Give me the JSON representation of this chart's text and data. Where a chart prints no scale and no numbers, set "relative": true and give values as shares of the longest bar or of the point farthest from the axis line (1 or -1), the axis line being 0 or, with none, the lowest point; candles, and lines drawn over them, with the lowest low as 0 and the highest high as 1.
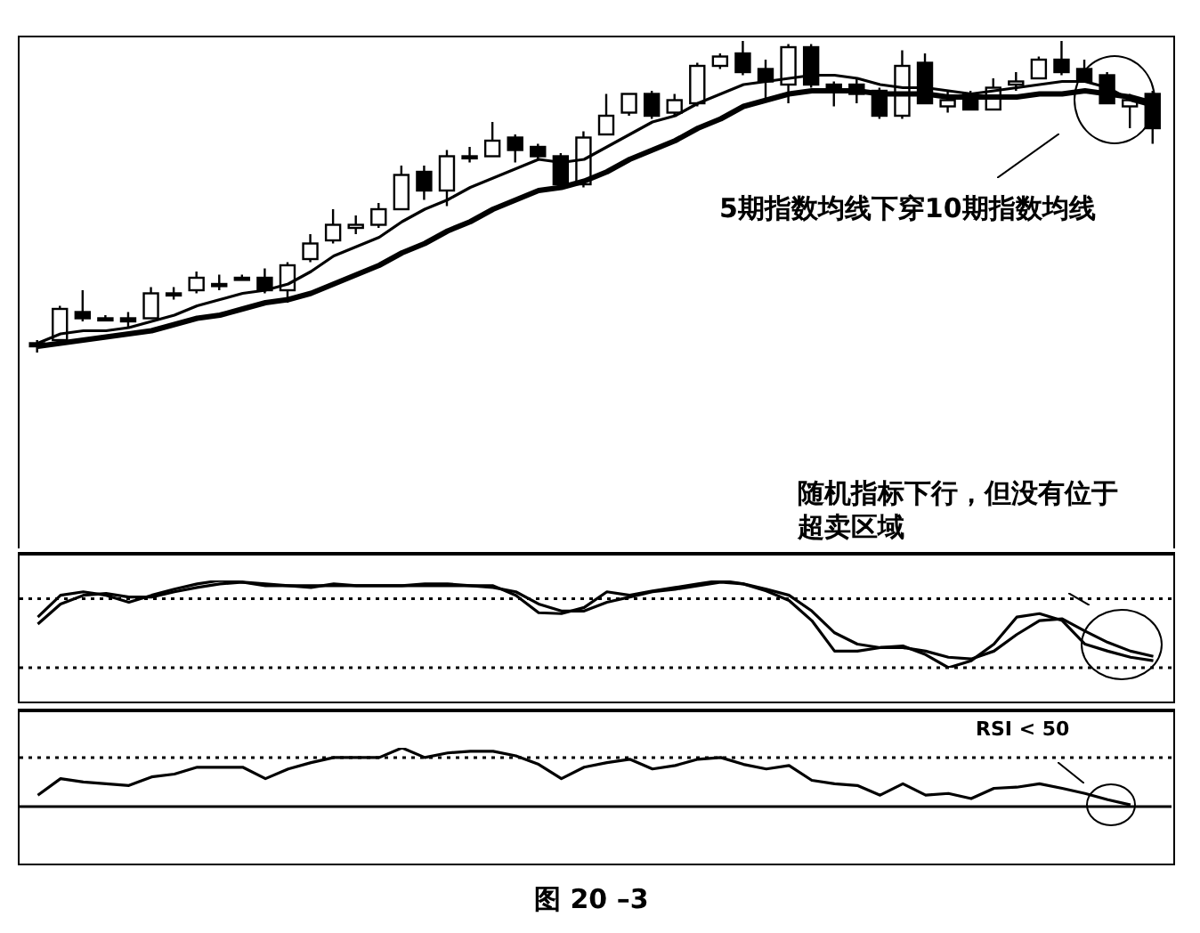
{
  "chart_data": [
    {
      "type": "candlestick",
      "relative": true,
      "categories": [
        null,
        null,
        null,
        null,
        null,
        null,
        null,
        null,
        null,
        null,
        null,
        null,
        null,
        null,
        null,
        null,
        null,
        null,
        null,
        null,
        null,
        null,
        null,
        null,
        null,
        null,
        null,
        null,
        null,
        null,
        null,
        null,
        null,
        null,
        null,
        null,
        null,
        null,
        null,
        null,
        null,
        null,
        null,
        null,
        null,
        null,
        null,
        null,
        null,
        null
      ],
      "ohlc": [
        [
          0.03,
          0.04,
          0,
          0.02
        ],
        [
          0.04,
          0.15,
          0.04,
          0.14
        ],
        [
          0.13,
          0.2,
          0.1,
          0.11
        ],
        [
          0.11,
          0.12,
          0.1,
          0.11
        ],
        [
          0.11,
          0.13,
          0.08,
          0.1
        ],
        [
          0.11,
          0.21,
          0.11,
          0.19
        ],
        [
          0.19,
          0.21,
          0.17,
          0.19
        ],
        [
          0.2,
          0.26,
          0.19,
          0.24
        ],
        [
          0.22,
          0.25,
          0.2,
          0.22
        ],
        [
          0.24,
          0.25,
          0.24,
          0.24
        ],
        [
          0.24,
          0.27,
          0.19,
          0.2
        ],
        [
          0.2,
          0.29,
          0.16,
          0.28
        ],
        [
          0.3,
          0.38,
          0.29,
          0.35
        ],
        [
          0.36,
          0.46,
          0.35,
          0.41
        ],
        [
          0.4,
          0.44,
          0.38,
          0.41
        ],
        [
          0.41,
          0.48,
          0.4,
          0.46
        ],
        [
          0.46,
          0.6,
          0.46,
          0.57
        ],
        [
          0.58,
          0.6,
          0.49,
          0.52
        ],
        [
          0.52,
          0.65,
          0.47,
          0.63
        ],
        [
          0.63,
          0.66,
          0.61,
          0.63
        ],
        [
          0.63,
          0.74,
          0.63,
          0.68
        ],
        [
          0.69,
          0.7,
          0.61,
          0.65
        ],
        [
          0.66,
          0.67,
          0.62,
          0.63
        ],
        [
          0.63,
          0.64,
          0.53,
          0.54
        ],
        [
          0.54,
          0.71,
          0.53,
          0.69
        ],
        [
          0.7,
          0.83,
          0.7,
          0.76
        ],
        [
          0.77,
          0.83,
          0.76,
          0.83
        ],
        [
          0.83,
          0.84,
          0.75,
          0.76
        ],
        [
          0.77,
          0.83,
          0.76,
          0.81
        ],
        [
          0.8,
          0.93,
          0.79,
          0.92
        ],
        [
          0.92,
          0.96,
          0.91,
          0.95
        ],
        [
          0.96,
          1,
          0.89,
          0.9
        ],
        [
          0.91,
          0.94,
          0.81,
          0.87
        ],
        [
          0.86,
          0.99,
          0.8,
          0.98
        ],
        [
          0.98,
          0.99,
          0.85,
          0.86
        ],
        [
          0.86,
          0.87,
          0.79,
          0.85
        ],
        [
          0.86,
          0.88,
          0.8,
          0.83
        ],
        [
          0.84,
          0.85,
          0.75,
          0.76
        ],
        [
          0.76,
          0.97,
          0.75,
          0.92
        ],
        [
          0.93,
          0.96,
          0.8,
          0.8
        ],
        [
          0.79,
          0.84,
          0.77,
          0.81
        ],
        [
          0.83,
          0.84,
          0.78,
          0.78
        ],
        [
          0.78,
          0.88,
          0.78,
          0.85
        ],
        [
          0.86,
          0.9,
          0.84,
          0.87
        ],
        [
          0.88,
          0.95,
          0.88,
          0.94
        ],
        [
          0.94,
          1,
          0.89,
          0.9
        ],
        [
          0.91,
          0.94,
          0.87,
          0.87
        ],
        [
          0.89,
          0.9,
          0.8,
          0.8
        ],
        [
          0.79,
          0.83,
          0.72,
          0.81
        ],
        [
          0.83,
          0.84,
          0.67,
          0.72
        ]
      ],
      "series": [
        {
          "type": "line",
          "color": "#000000",
          "values": [
            0.03,
            0.06,
            0.07,
            0.07,
            0.08,
            0.1,
            0.12,
            0.15,
            0.17,
            0.19,
            0.2,
            0.22,
            0.26,
            0.31,
            0.34,
            0.37,
            0.42,
            0.46,
            0.49,
            0.53,
            0.56,
            0.59,
            0.62,
            0.61,
            0.62,
            0.66,
            0.7,
            0.74,
            0.76,
            0.8,
            0.83,
            0.86,
            0.87,
            0.88,
            0.89,
            0.89,
            0.88,
            0.86,
            0.85,
            0.85,
            0.84,
            0.83,
            0.84,
            0.85,
            0.86,
            0.87,
            0.87,
            0.85,
            0.81,
            0.79
          ]
        },
        {
          "type": "line",
          "color": "#000000",
          "values": [
            0.02,
            0.03,
            0.04,
            0.05,
            0.06,
            0.07,
            0.09,
            0.11,
            0.12,
            0.14,
            0.16,
            0.17,
            0.19,
            0.22,
            0.25,
            0.28,
            0.32,
            0.35,
            0.39,
            0.42,
            0.46,
            0.49,
            0.52,
            0.53,
            0.55,
            0.58,
            0.62,
            0.65,
            0.68,
            0.72,
            0.75,
            0.79,
            0.81,
            0.83,
            0.84,
            0.84,
            0.84,
            0.83,
            0.83,
            0.83,
            0.82,
            0.82,
            0.82,
            0.82,
            0.83,
            0.83,
            0.84,
            0.83,
            0.82,
            0.8
          ]
        }
      ],
      "annotations": [
        "5期指数均线下穿10期指数均线"
      ]
    },
    {
      "type": "line",
      "relative": true,
      "categories": [
        null,
        null,
        null,
        null,
        null,
        null,
        null,
        null,
        null,
        null,
        null,
        null,
        null,
        null,
        null,
        null,
        null,
        null,
        null,
        null,
        null,
        null,
        null,
        null,
        null,
        null,
        null,
        null,
        null,
        null,
        null,
        null,
        null,
        null,
        null,
        null,
        null,
        null,
        null,
        null,
        null,
        null,
        null,
        null,
        null,
        null,
        null,
        null,
        null,
        null
      ],
      "series": [
        {
          "color": "#000000",
          "values": [
            0.58,
            0.83,
            0.87,
            0.83,
            0.75,
            0.83,
            0.9,
            0.96,
            1,
            0.98,
            0.94,
            0.94,
            0.92,
            0.96,
            0.94,
            0.94,
            0.94,
            0.96,
            0.96,
            0.94,
            0.94,
            0.83,
            0.63,
            0.62,
            0.69,
            0.87,
            0.83,
            0.88,
            0.92,
            0.96,
            1,
            0.96,
            0.88,
            0.77,
            0.54,
            0.19,
            0.19,
            0.23,
            0.25,
            0.15,
            0,
            0.08,
            0.27,
            0.58,
            0.62,
            0.54,
            0.27,
            0.19,
            0.12,
            0.08
          ]
        },
        {
          "color": "#000000",
          "values": [
            0.5,
            0.73,
            0.83,
            0.85,
            0.81,
            0.81,
            0.87,
            0.92,
            0.96,
            0.98,
            0.96,
            0.94,
            0.94,
            0.94,
            0.94,
            0.94,
            0.94,
            0.94,
            0.94,
            0.94,
            0.92,
            0.87,
            0.73,
            0.65,
            0.65,
            0.75,
            0.81,
            0.87,
            0.9,
            0.94,
            0.98,
            0.96,
            0.9,
            0.83,
            0.65,
            0.4,
            0.27,
            0.23,
            0.23,
            0.19,
            0.12,
            0.1,
            0.19,
            0.38,
            0.54,
            0.56,
            0.42,
            0.29,
            0.19,
            0.13
          ]
        }
      ],
      "ref_lines": [
        {
          "axis": "y",
          "value": 0.79,
          "line_style": "dotted",
          "color": "#000000"
        },
        {
          "axis": "y",
          "value": 0,
          "line_style": "dotted",
          "color": "#000000"
        }
      ],
      "annotations": [
        "随机指标下行，但没有位于超卖区域"
      ]
    },
    {
      "type": "line",
      "relative": true,
      "categories": [
        null,
        null,
        null,
        null,
        null,
        null,
        null,
        null,
        null,
        null,
        null,
        null,
        null,
        null,
        null,
        null,
        null,
        null,
        null,
        null,
        null,
        null,
        null,
        null,
        null,
        null,
        null,
        null,
        null,
        null,
        null,
        null,
        null,
        null,
        null,
        null,
        null,
        null,
        null,
        null,
        null,
        null,
        null,
        null,
        null,
        null,
        null,
        null,
        null,
        null
      ],
      "series": [
        {
          "color": "#000000",
          "values": [
            0.17,
            0.46,
            0.4,
            0.37,
            0.34,
            0.49,
            0.54,
            0.66,
            0.66,
            0.66,
            0.46,
            0.63,
            0.74,
            0.83,
            0.83,
            0.83,
            1,
            0.83,
            0.91,
            0.94,
            0.94,
            0.86,
            0.71,
            0.46,
            0.66,
            0.74,
            0.8,
            0.63,
            0.69,
            0.8,
            0.83,
            0.71,
            0.63,
            0.69,
            0.43,
            0.37,
            0.34,
            0.17,
            0.37,
            0.17,
            0.2,
            0.11,
            0.29,
            0.31,
            0.37,
            0.29,
            0.2,
            0.09,
            0,
            null
          ]
        }
      ],
      "ref_lines": [
        {
          "axis": "y",
          "value": 0.83,
          "line_style": "dotted",
          "color": "#000000"
        },
        {
          "axis": "y",
          "value": -0.03,
          "line_style": "solid",
          "color": "#000000"
        }
      ],
      "annotations": [
        "RSI < 50",
        "图 20 –3"
      ]
    }
  ]
}
